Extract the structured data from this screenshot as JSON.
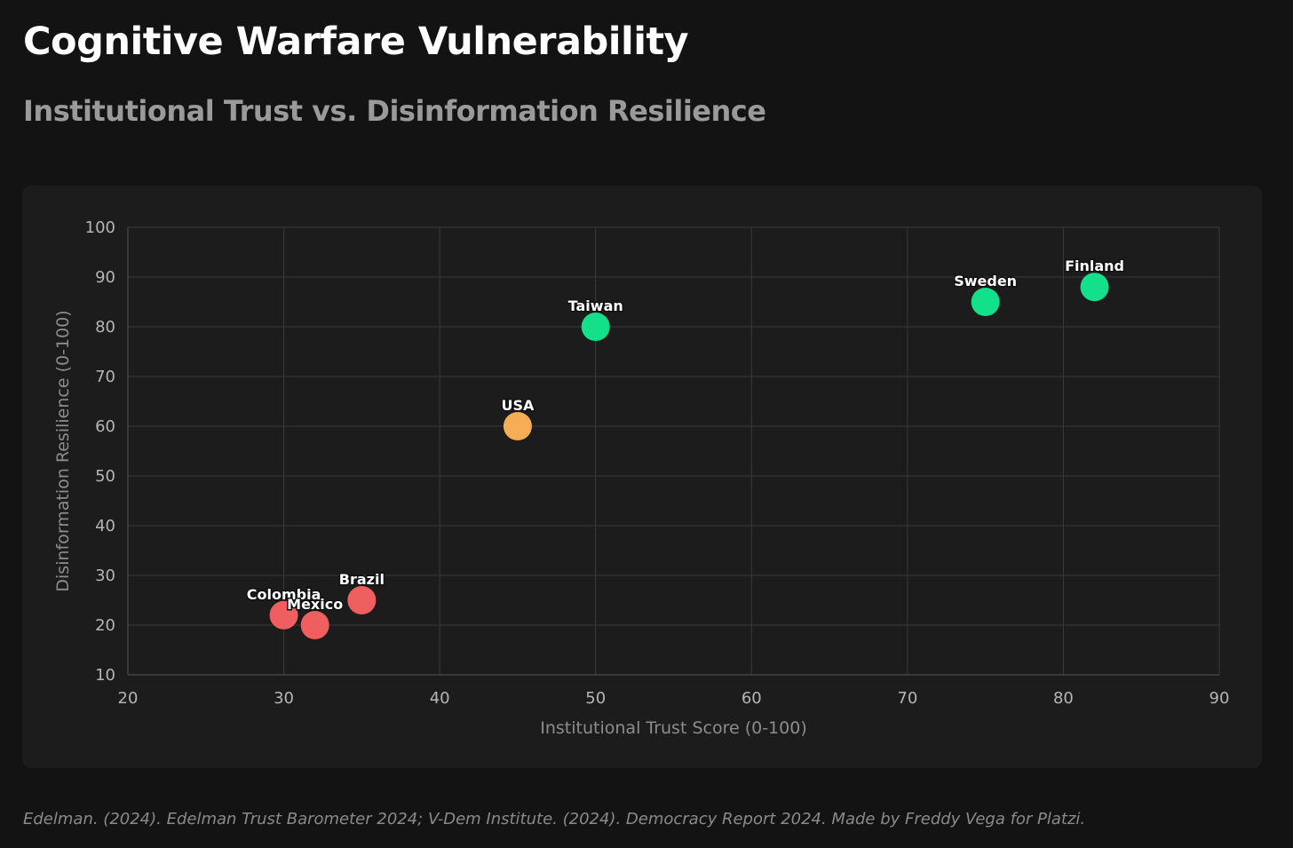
{
  "chart_data": {
    "type": "scatter",
    "title": "Cognitive Warfare Vulnerability",
    "subtitle": "Institutional Trust vs. Disinformation Resilience",
    "xlabel": "Institutional Trust Score (0-100)",
    "ylabel": "Disinformation Resilience (0-100)",
    "xlim": [
      20,
      90
    ],
    "ylim": [
      10,
      100
    ],
    "xticks": [
      20,
      30,
      40,
      50,
      60,
      70,
      80,
      90
    ],
    "yticks": [
      10,
      20,
      30,
      40,
      50,
      60,
      70,
      80,
      90,
      100
    ],
    "grid": true,
    "points": [
      {
        "label": "Colombia",
        "x": 30,
        "y": 22,
        "color": "#ef5f5f"
      },
      {
        "label": "Mexico",
        "x": 32,
        "y": 20,
        "color": "#ef5f5f"
      },
      {
        "label": "Brazil",
        "x": 35,
        "y": 25,
        "color": "#ef5f5f"
      },
      {
        "label": "USA",
        "x": 45,
        "y": 60,
        "color": "#f6ad55"
      },
      {
        "label": "Taiwan",
        "x": 50,
        "y": 80,
        "color": "#12e08b"
      },
      {
        "label": "Sweden",
        "x": 75,
        "y": 85,
        "color": "#12e08b"
      },
      {
        "label": "Finland",
        "x": 82,
        "y": 88,
        "color": "#12e08b"
      }
    ],
    "source": "Edelman. (2024). Edelman Trust Barometer 2024; V-Dem Institute. (2024). Democracy Report 2024. Made by Freddy Vega for Platzi."
  }
}
